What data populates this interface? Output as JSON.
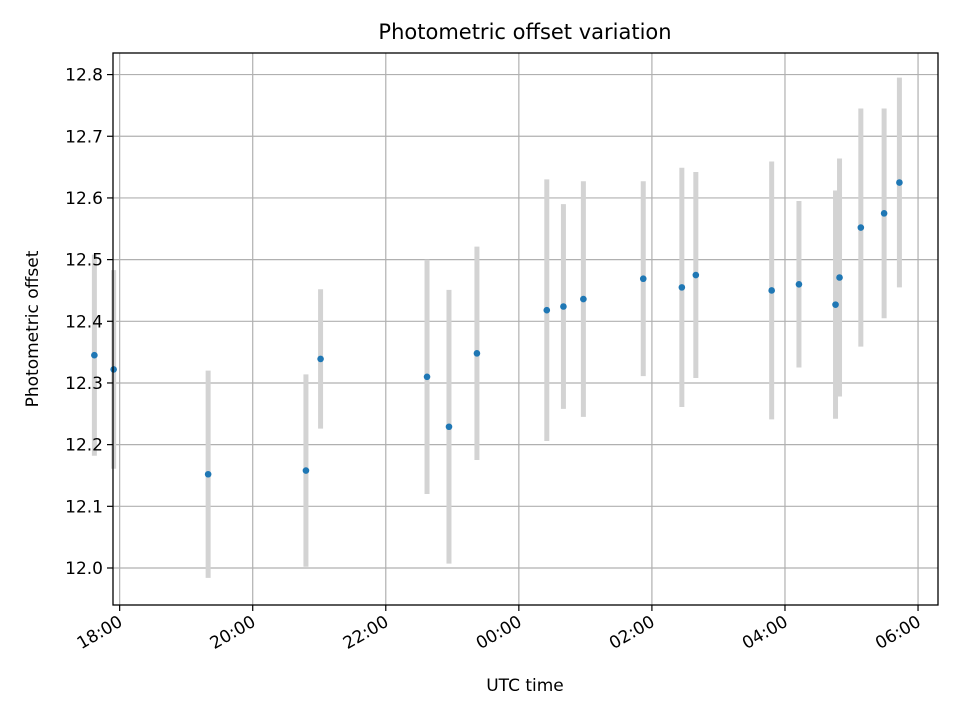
{
  "chart_data": {
    "type": "scatter",
    "title": "Photometric offset variation",
    "xlabel": "UTC time",
    "ylabel": "Photometric offset",
    "xlim": [
      -6.1,
      6.3
    ],
    "ylim": [
      11.94,
      12.835
    ],
    "grid": true,
    "x_unit": "hours relative to 00:00 UTC",
    "x_ticks": [
      {
        "value": -6,
        "label": "18:00"
      },
      {
        "value": -4,
        "label": "20:00"
      },
      {
        "value": -2,
        "label": "22:00"
      },
      {
        "value": 0,
        "label": "00:00"
      },
      {
        "value": 2,
        "label": "02:00"
      },
      {
        "value": 4,
        "label": "04:00"
      },
      {
        "value": 6,
        "label": "06:00"
      }
    ],
    "y_ticks": [
      "12.0",
      "12.1",
      "12.2",
      "12.3",
      "12.4",
      "12.5",
      "12.6",
      "12.7",
      "12.8"
    ],
    "marker_color": "#1f77b4",
    "errorbar_color": "#d3d3d3",
    "points": [
      {
        "x": -6.38,
        "y": 12.345,
        "err": 0.163
      },
      {
        "x": -6.09,
        "y": 12.322,
        "err": 0.161
      },
      {
        "x": -4.67,
        "y": 12.152,
        "err": 0.168
      },
      {
        "x": -3.2,
        "y": 12.158,
        "err": 0.156
      },
      {
        "x": -2.98,
        "y": 12.339,
        "err": 0.113
      },
      {
        "x": -1.38,
        "y": 12.31,
        "err": 0.19
      },
      {
        "x": -1.05,
        "y": 12.229,
        "err": 0.222
      },
      {
        "x": -0.63,
        "y": 12.348,
        "err": 0.173
      },
      {
        "x": 0.42,
        "y": 12.418,
        "err": 0.212
      },
      {
        "x": 0.67,
        "y": 12.424,
        "err": 0.166
      },
      {
        "x": 0.97,
        "y": 12.436,
        "err": 0.191
      },
      {
        "x": 1.87,
        "y": 12.469,
        "err": 0.158
      },
      {
        "x": 2.45,
        "y": 12.455,
        "err": 0.194
      },
      {
        "x": 2.66,
        "y": 12.475,
        "err": 0.167
      },
      {
        "x": 3.8,
        "y": 12.45,
        "err": 0.209
      },
      {
        "x": 4.21,
        "y": 12.46,
        "err": 0.135
      },
      {
        "x": 4.76,
        "y": 12.427,
        "err": 0.185
      },
      {
        "x": 4.82,
        "y": 12.471,
        "err": 0.193
      },
      {
        "x": 5.14,
        "y": 12.552,
        "err": 0.193
      },
      {
        "x": 5.49,
        "y": 12.575,
        "err": 0.17
      },
      {
        "x": 5.72,
        "y": 12.625,
        "err": 0.17
      }
    ]
  }
}
